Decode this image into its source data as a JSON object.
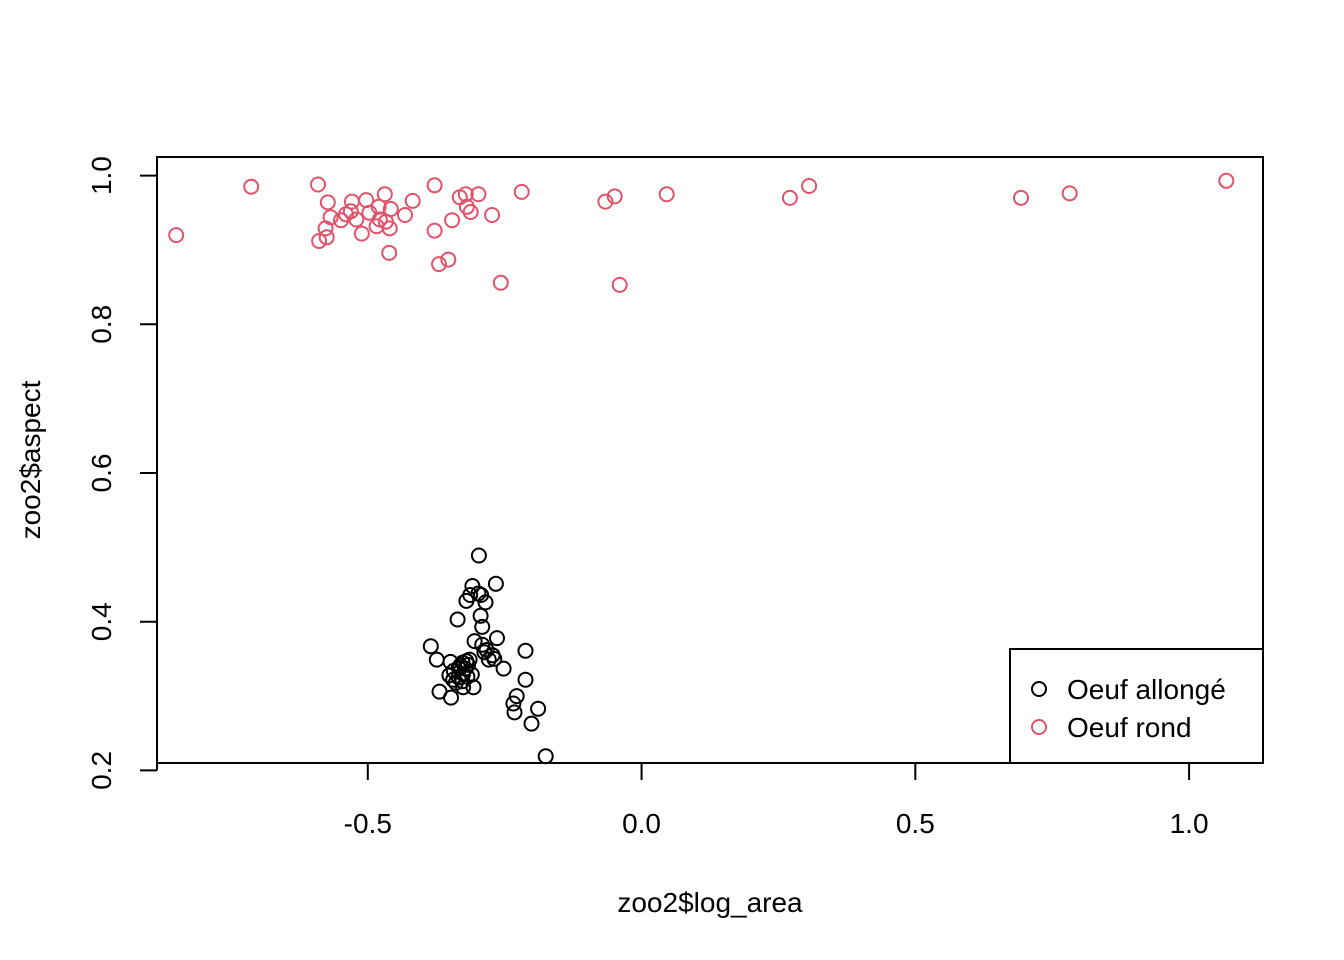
{
  "chart_data": {
    "type": "scatter",
    "xlabel": "zoo2$log_area",
    "ylabel": "zoo2$aspect",
    "xlim": [
      -0.885,
      1.135
    ],
    "ylim": [
      0.21,
      1.025
    ],
    "x_ticks": [
      -0.5,
      0.0,
      0.5,
      1.0
    ],
    "x_tick_labels": [
      "-0.5",
      "0.0",
      "0.5",
      "1.0"
    ],
    "y_ticks": [
      0.2,
      0.4,
      0.6,
      0.8,
      1.0
    ],
    "y_tick_labels": [
      "0.2",
      "0.4",
      "0.6",
      "0.8",
      "1.0"
    ],
    "grid": false,
    "legend_position": "bottom-right",
    "series": [
      {
        "name": "Oeuf allongé",
        "color": "#000000",
        "marker": "open-circle",
        "points": [
          [
            -0.297,
            0.489
          ],
          [
            -0.309,
            0.448
          ],
          [
            -0.266,
            0.451
          ],
          [
            -0.313,
            0.436
          ],
          [
            -0.298,
            0.438
          ],
          [
            -0.293,
            0.436
          ],
          [
            -0.32,
            0.428
          ],
          [
            -0.285,
            0.426
          ],
          [
            -0.336,
            0.403
          ],
          [
            -0.294,
            0.408
          ],
          [
            -0.291,
            0.393
          ],
          [
            -0.264,
            0.378
          ],
          [
            -0.305,
            0.374
          ],
          [
            -0.291,
            0.369
          ],
          [
            -0.385,
            0.367
          ],
          [
            -0.283,
            0.362
          ],
          [
            -0.212,
            0.361
          ],
          [
            -0.287,
            0.359
          ],
          [
            -0.272,
            0.355
          ],
          [
            -0.269,
            0.35
          ],
          [
            -0.279,
            0.349
          ],
          [
            -0.374,
            0.349
          ],
          [
            -0.314,
            0.349
          ],
          [
            -0.32,
            0.347
          ],
          [
            -0.349,
            0.346
          ],
          [
            -0.327,
            0.345
          ],
          [
            -0.317,
            0.342
          ],
          [
            -0.331,
            0.341
          ],
          [
            -0.334,
            0.338
          ],
          [
            -0.322,
            0.337
          ],
          [
            -0.252,
            0.337
          ],
          [
            -0.343,
            0.334
          ],
          [
            -0.326,
            0.33
          ],
          [
            -0.31,
            0.329
          ],
          [
            -0.351,
            0.328
          ],
          [
            -0.318,
            0.326
          ],
          [
            -0.334,
            0.325
          ],
          [
            -0.344,
            0.322
          ],
          [
            -0.327,
            0.32
          ],
          [
            -0.212,
            0.322
          ],
          [
            -0.339,
            0.318
          ],
          [
            -0.326,
            0.312
          ],
          [
            -0.307,
            0.312
          ],
          [
            -0.369,
            0.306
          ],
          [
            -0.348,
            0.298
          ],
          [
            -0.228,
            0.3
          ],
          [
            -0.234,
            0.29
          ],
          [
            -0.189,
            0.283
          ],
          [
            -0.232,
            0.278
          ],
          [
            -0.201,
            0.263
          ],
          [
            -0.175,
            0.219
          ]
        ]
      },
      {
        "name": "Oeuf rond",
        "color": "#DF536B",
        "marker": "open-circle",
        "points": [
          [
            -0.85,
            0.92
          ],
          [
            -0.713,
            0.985
          ],
          [
            -0.591,
            0.988
          ],
          [
            -0.589,
            0.912
          ],
          [
            -0.575,
            0.917
          ],
          [
            -0.577,
            0.929
          ],
          [
            -0.568,
            0.944
          ],
          [
            -0.573,
            0.964
          ],
          [
            -0.549,
            0.94
          ],
          [
            -0.54,
            0.948
          ],
          [
            -0.531,
            0.952
          ],
          [
            -0.529,
            0.965
          ],
          [
            -0.521,
            0.941
          ],
          [
            -0.511,
            0.922
          ],
          [
            -0.503,
            0.967
          ],
          [
            -0.497,
            0.95
          ],
          [
            -0.484,
            0.932
          ],
          [
            -0.48,
            0.958
          ],
          [
            -0.478,
            0.941
          ],
          [
            -0.469,
            0.975
          ],
          [
            -0.467,
            0.938
          ],
          [
            -0.46,
            0.929
          ],
          [
            -0.458,
            0.955
          ],
          [
            -0.461,
            0.896
          ],
          [
            -0.432,
            0.947
          ],
          [
            -0.418,
            0.966
          ],
          [
            -0.378,
            0.987
          ],
          [
            -0.378,
            0.926
          ],
          [
            -0.37,
            0.881
          ],
          [
            -0.353,
            0.887
          ],
          [
            -0.346,
            0.94
          ],
          [
            -0.332,
            0.971
          ],
          [
            -0.321,
            0.975
          ],
          [
            -0.319,
            0.958
          ],
          [
            -0.312,
            0.951
          ],
          [
            -0.298,
            0.975
          ],
          [
            -0.273,
            0.947
          ],
          [
            -0.257,
            0.856
          ],
          [
            -0.219,
            0.978
          ],
          [
            -0.066,
            0.965
          ],
          [
            -0.049,
            0.972
          ],
          [
            -0.04,
            0.853
          ],
          [
            0.046,
            0.975
          ],
          [
            0.271,
            0.97
          ],
          [
            0.306,
            0.986
          ],
          [
            0.693,
            0.97
          ],
          [
            0.782,
            0.976
          ],
          [
            1.068,
            0.993
          ]
        ]
      }
    ]
  }
}
